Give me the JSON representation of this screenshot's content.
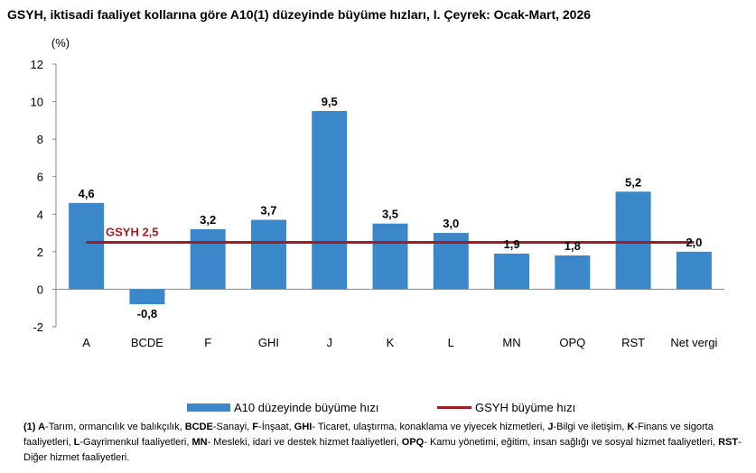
{
  "title": "GSYH, iktisadi faaliyet kollarına göre A10(1) düzeyinde büyüme hızları, I. Çeyrek: Ocak-Mart, 2026",
  "chart_data": {
    "type": "bar",
    "ylabel": "(%)",
    "ylim": [
      -2,
      12
    ],
    "yticks": [
      -2,
      0,
      2,
      4,
      6,
      8,
      10,
      12
    ],
    "categories": [
      "A",
      "BCDE",
      "F",
      "GHI",
      "J",
      "K",
      "L",
      "MN",
      "OPQ",
      "RST",
      "Net vergi"
    ],
    "series": [
      {
        "name": "A10 düzeyinde büyüme hızı",
        "values": [
          4.6,
          -0.8,
          3.2,
          3.7,
          9.5,
          3.5,
          3.0,
          1.9,
          1.8,
          5.2,
          2.0
        ],
        "labels": [
          "4,6",
          "-0,8",
          "3,2",
          "3,7",
          "9,5",
          "3,5",
          "3,0",
          "1,9",
          "1,8",
          "5,2",
          "2,0"
        ],
        "color": "#3a87c9"
      },
      {
        "name": "GSYH büyüme hızı",
        "value": 2.5,
        "label": "GSYH 2,5",
        "color": "#a11d21"
      }
    ],
    "grid": false,
    "legend_position": "bottom"
  },
  "footnote": {
    "marker": "(1)",
    "parts": [
      {
        "b": "A",
        "t": "-Tarım, ormancılık ve balıkçılık, "
      },
      {
        "b": "BCDE",
        "t": "-Sanayi, "
      },
      {
        "b": "F",
        "t": "-İnşaat, "
      },
      {
        "b": "GHI",
        "t": "- Ticaret, ulaştırma, konaklama ve yiyecek hizmetleri, "
      },
      {
        "b": "J",
        "t": "-Bilgi ve iletişim, "
      },
      {
        "b": "K",
        "t": "-Finans ve sigorta faaliyetleri, "
      },
      {
        "b": "L",
        "t": "-Gayrimenkul faaliyetleri, "
      },
      {
        "b": "MN",
        "t": "- Mesleki, idari ve destek hizmet faaliyetleri, "
      },
      {
        "b": "OPQ",
        "t": "- Kamu yönetimi, eğitim, insan sağlığı ve sosyal hizmet faaliyetleri, "
      },
      {
        "b": "RST",
        "t": "- Diğer hizmet faaliyetleri."
      }
    ]
  }
}
